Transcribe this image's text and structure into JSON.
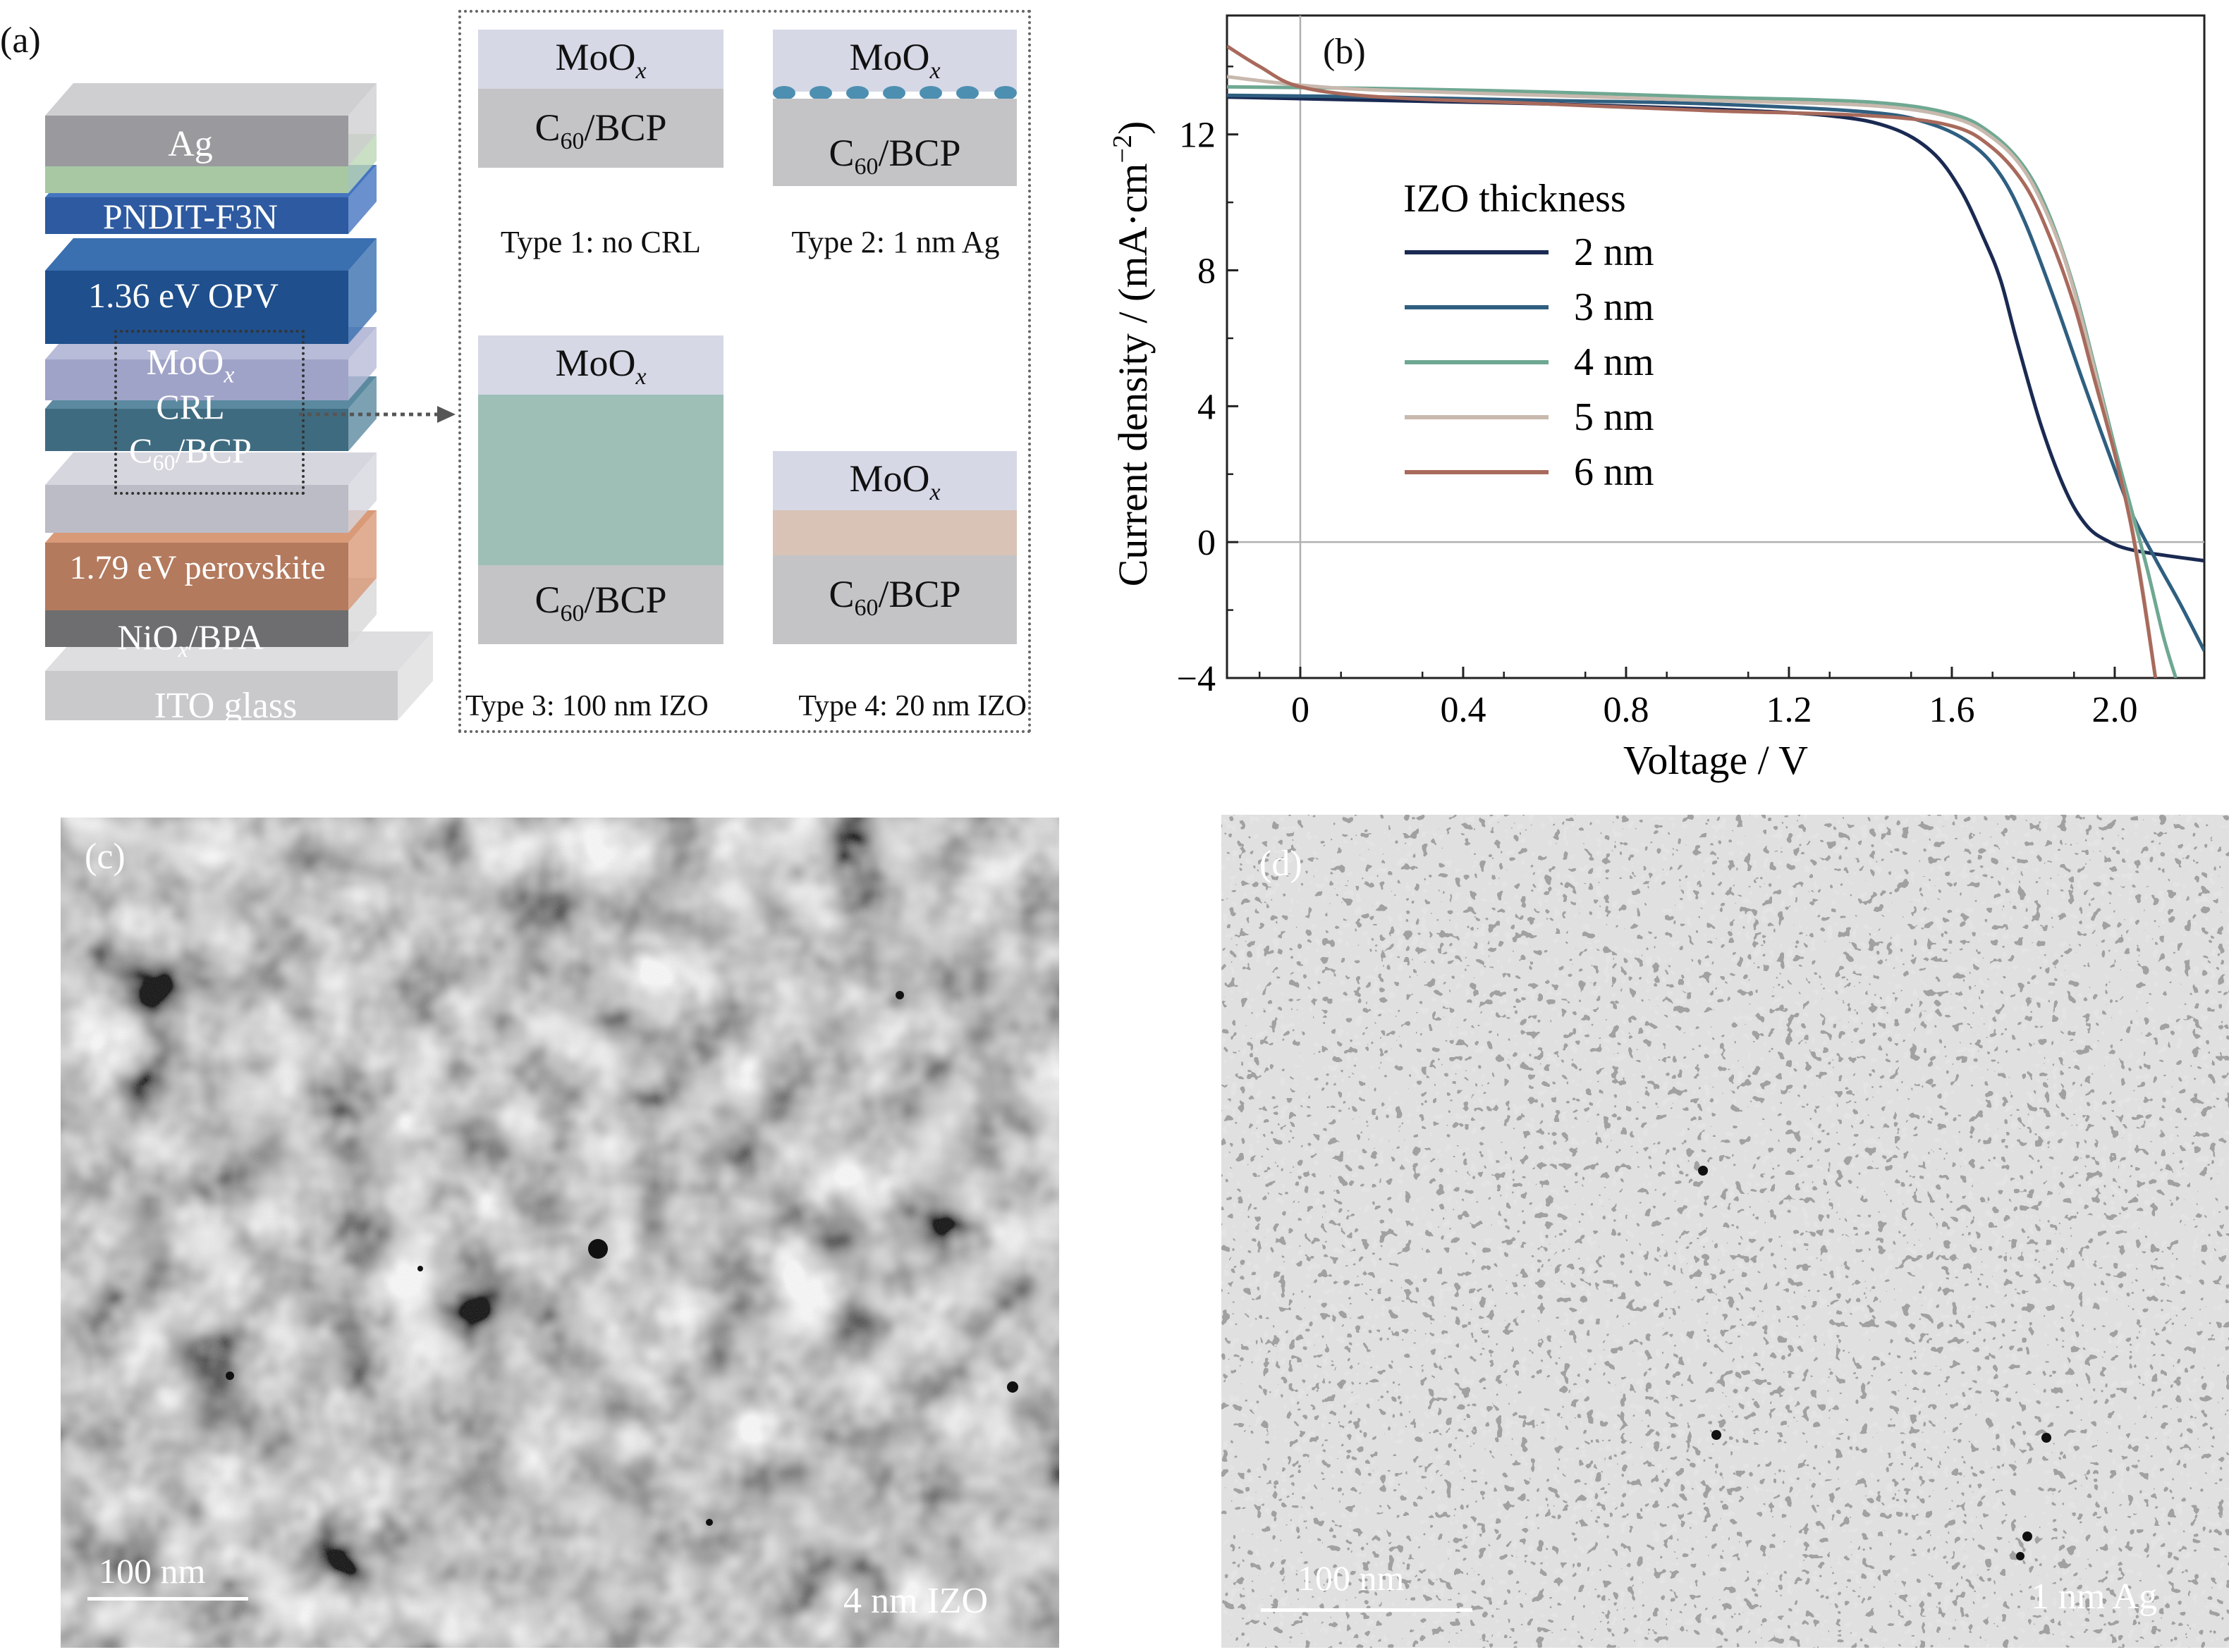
{
  "panel_a": {
    "label": "(a)",
    "stack_layers": [
      "Ag",
      "PNDIT-F3N",
      "1.36 eV OPV",
      "MoO",
      "CRL",
      "C60/BCP",
      "1.79 eV perovskite",
      "NiO",
      "/BPA",
      "ITO glass"
    ],
    "moox": "MoO",
    "x_sub": "x",
    "c60": "C",
    "c60_sub": "60",
    "bcp": "/BCP",
    "type1": "Type 1: no CRL",
    "type2": "Type 2: 1 nm Ag",
    "type3": "Type 3: 100 nm IZO",
    "type4": "Type 4: 20 nm IZO"
  },
  "panel_b": {
    "label": "(b)",
    "legend_title": "IZO thickness",
    "xlabel": "Voltage / V",
    "ylabel_main": "Current density / (mA·cm",
    "ylabel_sup": "−2",
    "ylabel_end": ")"
  },
  "panel_c": {
    "label": "(c)",
    "scalebar": "100 nm",
    "caption": "4 nm IZO"
  },
  "panel_d": {
    "label": "(d)",
    "scalebar": "100 nm",
    "caption": "1 nm Ag"
  },
  "chart_data": {
    "type": "line",
    "xlabel": "Voltage / V",
    "ylabel": "Current density / (mA·cm−2)",
    "xlim": [
      -0.18,
      2.22
    ],
    "ylim": [
      -4,
      15.5
    ],
    "xticks": [
      0,
      0.4,
      0.8,
      1.2,
      1.6,
      2.0
    ],
    "xtick_labels": [
      "0",
      "0.4",
      "0.8",
      "1.2",
      "1.6",
      "2.0"
    ],
    "yticks": [
      -4,
      0,
      4,
      8,
      12
    ],
    "ytick_labels": [
      "−4",
      "0",
      "4",
      "8",
      "12"
    ],
    "legend_title": "IZO thickness",
    "legend_position": "center-left",
    "series": [
      {
        "name": "2 nm",
        "color": "#1a2a52",
        "x": [
          -0.18,
          0.2,
          0.6,
          1.0,
          1.3,
          1.45,
          1.55,
          1.62,
          1.68,
          1.72,
          1.76,
          1.82,
          1.88,
          1.93,
          1.98,
          2.05,
          2.22
        ],
        "y": [
          13.1,
          13.0,
          12.9,
          12.75,
          12.55,
          12.2,
          11.5,
          10.4,
          8.9,
          7.7,
          5.9,
          3.4,
          1.5,
          0.5,
          0.05,
          -0.25,
          -0.55
        ]
      },
      {
        "name": "3 nm",
        "color": "#2f5f80",
        "x": [
          -0.18,
          0.2,
          0.6,
          1.0,
          1.4,
          1.55,
          1.65,
          1.72,
          1.78,
          1.85,
          1.92,
          1.98,
          2.04,
          2.1,
          2.16,
          2.22
        ],
        "y": [
          13.15,
          13.1,
          13.0,
          12.9,
          12.65,
          12.3,
          11.7,
          10.8,
          9.4,
          7.2,
          4.8,
          2.8,
          0.9,
          -0.5,
          -1.8,
          -3.2
        ]
      },
      {
        "name": "4 nm",
        "color": "#6fa892",
        "x": [
          -0.18,
          0.2,
          0.6,
          1.0,
          1.4,
          1.6,
          1.7,
          1.78,
          1.84,
          1.9,
          1.95,
          2.0,
          2.04,
          2.08,
          2.12,
          2.15
        ],
        "y": [
          13.4,
          13.35,
          13.25,
          13.1,
          12.95,
          12.6,
          12.0,
          11.0,
          9.6,
          7.5,
          5.2,
          2.8,
          1.0,
          -0.8,
          -2.8,
          -4.0
        ]
      },
      {
        "name": "5 nm",
        "color": "#c8b8ad",
        "x": [
          -0.18,
          0.0,
          0.2,
          0.6,
          1.0,
          1.4,
          1.6,
          1.7,
          1.78,
          1.85,
          1.9,
          1.96,
          2.0,
          2.04,
          2.07,
          2.1
        ],
        "y": [
          13.7,
          13.45,
          13.3,
          13.15,
          13.0,
          12.85,
          12.5,
          11.9,
          10.9,
          9.2,
          7.4,
          4.6,
          2.6,
          0.6,
          -1.5,
          -4.0
        ]
      },
      {
        "name": "6 nm",
        "color": "#a86a5c",
        "x": [
          -0.18,
          -0.1,
          0.0,
          0.2,
          0.6,
          1.0,
          1.4,
          1.6,
          1.7,
          1.78,
          1.84,
          1.9,
          1.95,
          2.0,
          2.04,
          2.07,
          2.1
        ],
        "y": [
          14.6,
          14.0,
          13.4,
          13.1,
          12.9,
          12.7,
          12.55,
          12.25,
          11.6,
          10.5,
          9.0,
          7.0,
          4.8,
          2.6,
          0.5,
          -1.6,
          -4.0
        ]
      }
    ]
  }
}
